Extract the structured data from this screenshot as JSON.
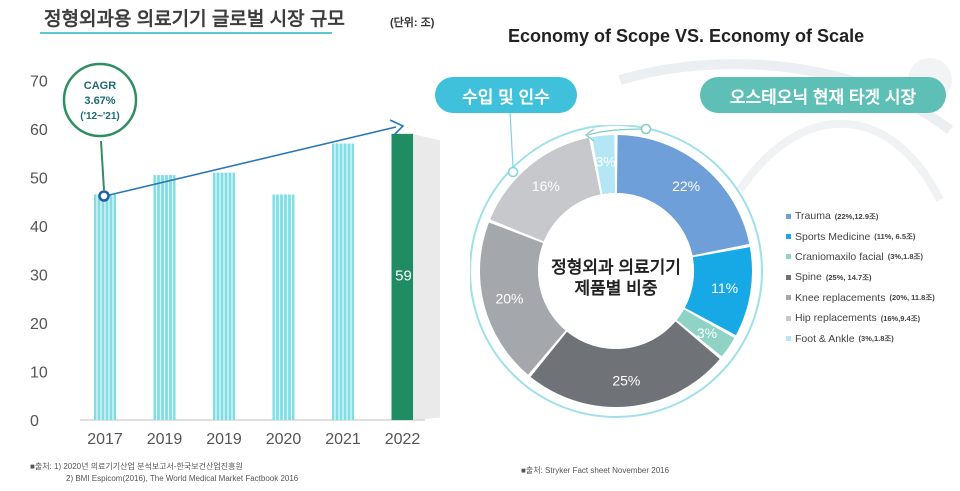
{
  "header": {
    "left_title": "정형외과용 의료기기 글로벌 시장 규모",
    "unit": "(단위: 조)",
    "right_title": "Economy of Scope VS. Economy of Scale"
  },
  "callouts": {
    "cagr_title": "CAGR",
    "cagr_value": "3.67%",
    "cagr_period": "('12~'21)",
    "pill_left": "수입 및 인수",
    "pill_right": "오스테오닉 현재 타겟 시장",
    "donut_center_line1": "정형외과 의료기기",
    "donut_center_line2": "제품별 비중"
  },
  "sources": {
    "left_line1": "■출처: 1) 2020년 의료기기산업 분석보고서-한국보건산업진흥원",
    "left_line2": "2) BMI Espicom(2016), The World Medical Market Factbook 2016",
    "right": "■출처: Stryker Fact sheet November 2016"
  },
  "chart_data": [
    {
      "type": "bar",
      "categories": [
        "2017",
        "2019",
        "2019",
        "2020",
        "2021",
        "2022"
      ],
      "values": [
        46.5,
        50.5,
        51,
        46.5,
        57,
        59
      ],
      "highlight_index": 5,
      "highlight_label": "59",
      "ylim": [
        0,
        70
      ],
      "yticks": [
        "0",
        "10",
        "20",
        "30",
        "40",
        "50",
        "60",
        "70"
      ],
      "grid": false,
      "colors": {
        "bar": "#7fdde3",
        "highlight": "#1f8c64",
        "trend": "#2a78b8"
      }
    },
    {
      "type": "pie",
      "donut": true,
      "slices": [
        {
          "name": "Trauma",
          "detail": "(22%,12.9조)",
          "percent": 22,
          "label": "22%",
          "color": "#6f9fd8"
        },
        {
          "name": "Sports Medicine",
          "detail": "(11%, 6.5조)",
          "percent": 11,
          "label": "11%",
          "color": "#16a9e5"
        },
        {
          "name": "Craniomaxilo facial",
          "detail": "(3%,1.8조)",
          "percent": 3,
          "label": "3%",
          "color": "#8fd3c7"
        },
        {
          "name": "Spine",
          "detail": "(25%, 14.7조)",
          "percent": 25,
          "label": "25%",
          "color": "#6f7277"
        },
        {
          "name": "Knee replacements",
          "detail": "(20%, 11.8조)",
          "percent": 20,
          "label": "20%",
          "color": "#a4a7ab"
        },
        {
          "name": "Hip replacements",
          "detail": "(16%,9.4조)",
          "percent": 16,
          "label": "16%",
          "color": "#c6c8cb"
        },
        {
          "name": "Foot & Ankle",
          "detail": "(3%,1.8조)",
          "percent": 3,
          "label": "3%",
          "color": "#b5e6f5"
        }
      ],
      "legend": "right"
    }
  ]
}
